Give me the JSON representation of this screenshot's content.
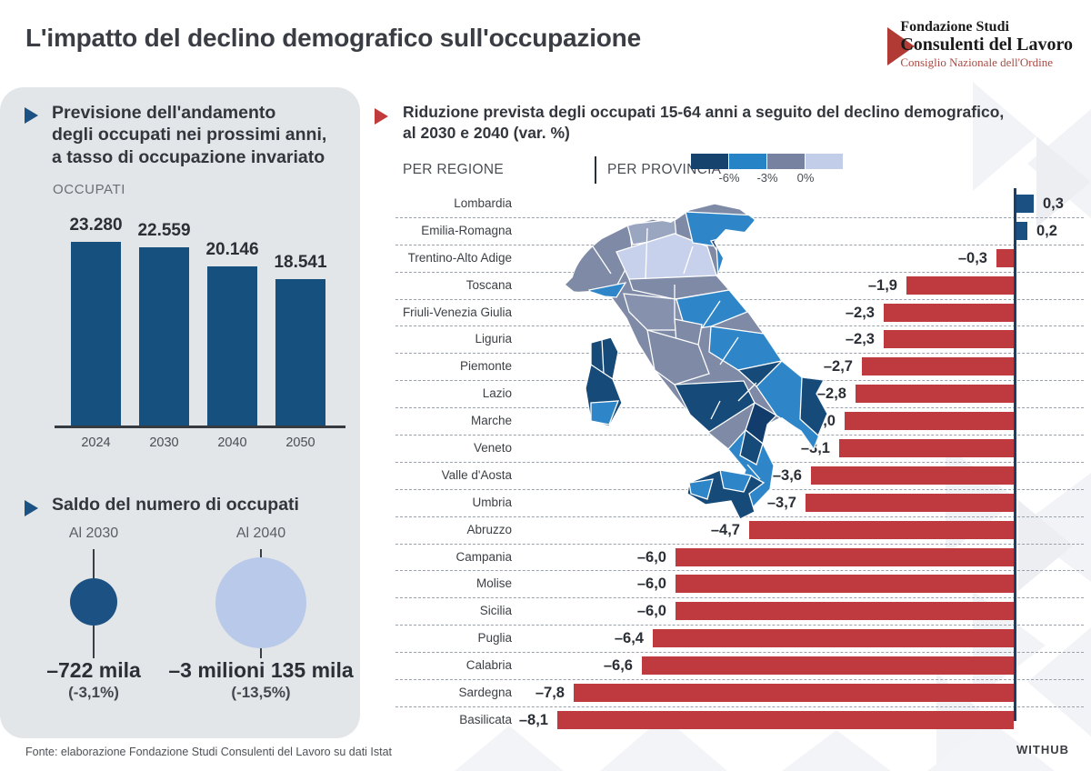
{
  "page": {
    "title": "L'impatto del declino demografico sull'occupazione",
    "footer_source": "Fonte: elaborazione Fondazione Studi Consulenti del Lavoro su dati Istat",
    "brand": "WITHUB"
  },
  "logo": {
    "line1": "Fondazione Studi",
    "line2": "Consulenti del Lavoro",
    "line3": "Consiglio Nazionale dell'Ordine"
  },
  "left_panel": {
    "forecast_heading": "Previsione dell'andamento\ndegli occupati nei prossimi anni,\na tasso di occupazione invariato",
    "chart_label": "OCCUPATI",
    "saldo_heading": "Saldo del numero di occupati",
    "saldo_items": [
      {
        "label": "Al 2030",
        "value": "–722 mila",
        "pct": "(-3,1%)"
      },
      {
        "label": "Al 2040",
        "value": "–3 milioni 135 mila",
        "pct": "(-13,5%)"
      }
    ]
  },
  "right_panel": {
    "heading": "Riduzione prevista degli occupati 15-64 anni a seguito del declino demografico,\nal 2030 e 2040 (var. %)",
    "tabs": [
      {
        "label": "PER REGIONE"
      },
      {
        "label": "PER PROVINCIA"
      }
    ],
    "legend": {
      "ticks": [
        "-6%",
        "-3%",
        "0%"
      ],
      "colors": [
        "#16436e",
        "#2583c6",
        "#76829f",
        "#c2cde9"
      ]
    }
  },
  "colors": {
    "bar_blue": "#15507f",
    "bar_red": "#bf3a3e",
    "circle_dark": "#1c5184",
    "circle_light": "#b9c9e9",
    "accent_red": "#c13a3c",
    "accent_blue": "#1c5184",
    "panel_gray": "#e3e6e9"
  },
  "chart_data": [
    {
      "type": "bar",
      "title": "OCCUPATI",
      "subtitle": "Previsione dell'andamento degli occupati nei prossimi anni, a tasso di occupazione invariato",
      "categories": [
        "2024",
        "2030",
        "2040",
        "2050"
      ],
      "values": [
        23280,
        22559,
        20146,
        18541
      ],
      "value_labels": [
        "23.280",
        "22.559",
        "20.146",
        "18.541"
      ],
      "xlabel": "",
      "ylabel": "",
      "ylim": [
        0,
        23280
      ],
      "grid": false,
      "legend_position": "none"
    },
    {
      "type": "bubble",
      "title": "Saldo del numero di occupati",
      "categories": [
        "Al 2030",
        "Al 2040"
      ],
      "values": [
        -722000,
        -3135000
      ],
      "value_labels": [
        "–722 mila",
        "–3 milioni 135 mila"
      ],
      "pct_labels": [
        "(-3,1%)",
        "(-13,5%)"
      ]
    },
    {
      "type": "bar",
      "orientation": "horizontal",
      "title": "Riduzione prevista degli occupati 15-64 anni a seguito del declino demografico, al 2030 e 2040 (var. %)",
      "categories": [
        "Lombardia",
        "Emilia-Romagna",
        "Trentino-Alto Adige",
        "Toscana",
        "Friuli-Venezia Giulia",
        "Liguria",
        "Piemonte",
        "Lazio",
        "Marche",
        "Veneto",
        "Valle d'Aosta",
        "Umbria",
        "Abruzzo",
        "Campania",
        "Molise",
        "Sicilia",
        "Puglia",
        "Calabria",
        "Sardegna",
        "Basilicata"
      ],
      "values": [
        0.3,
        0.2,
        -0.3,
        -1.9,
        -2.3,
        -2.3,
        -2.7,
        -2.8,
        -3.0,
        -3.1,
        -3.6,
        -3.7,
        -4.7,
        -6.0,
        -6.0,
        -6.0,
        -6.4,
        -6.6,
        -7.8,
        -8.1
      ],
      "value_labels": [
        "0,3",
        "0,2",
        "–0,3",
        "–1,9",
        "–2,3",
        "–2,3",
        "–2,7",
        "–2,8",
        "–3,0",
        "–3,1",
        "–3,6",
        "–3,7",
        "–4,7",
        "–6,0",
        "–6,0",
        "–6,0",
        "–6,4",
        "–6,6",
        "–7,8",
        "–8,1"
      ],
      "xlabel": "var. %",
      "ylabel": "",
      "xlim": [
        -8.5,
        0.5
      ],
      "grid": false,
      "legend_position": "top"
    }
  ]
}
